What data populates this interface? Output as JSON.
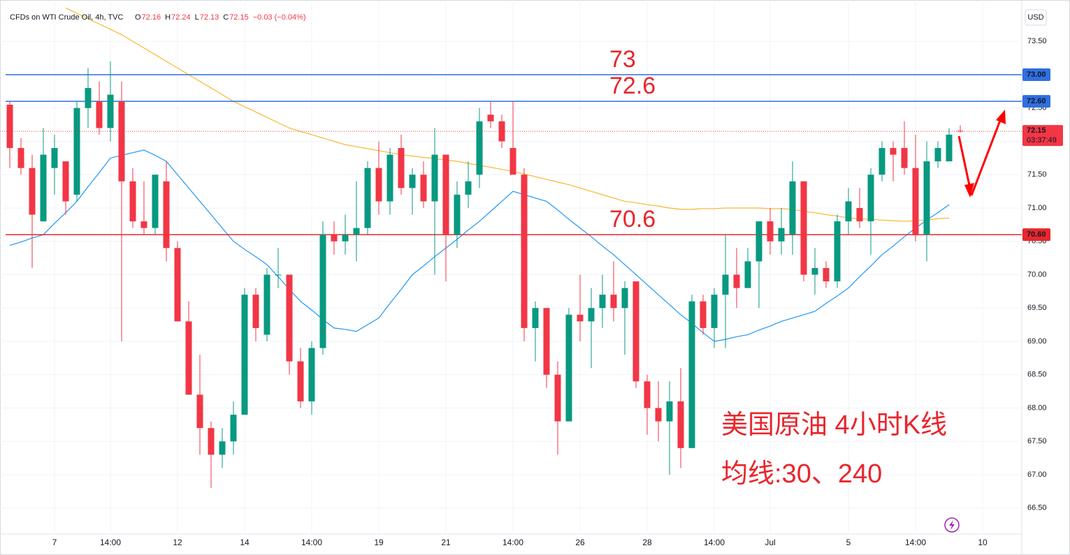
{
  "chart_data": {
    "type": "candlestick",
    "header": {
      "title": "CFDs on WTI Crude Oil, 4h, TVC",
      "open_label": "O",
      "open": "72.16",
      "high_label": "H",
      "high": "72.24",
      "low_label": "L",
      "low": "72.13",
      "close_label": "C",
      "close": "72.15",
      "change": "−0.03 (−0.04%)"
    },
    "currency": "USD",
    "annotations": [
      "美国原油 4小时K线",
      "均线:30、240"
    ],
    "ylim": [
      66.11,
      74.12
    ],
    "yticks": [
      {
        "value": 66.5,
        "label": "66.50"
      },
      {
        "value": 67,
        "label": "67.00"
      },
      {
        "value": 67.5,
        "label": "67.50"
      },
      {
        "value": 68,
        "label": "68.00"
      },
      {
        "value": 68.5,
        "label": "68.50"
      },
      {
        "value": 69,
        "label": "69.00"
      },
      {
        "value": 69.5,
        "label": "69.50"
      },
      {
        "value": 70,
        "label": "70.00"
      },
      {
        "value": 70.5,
        "label": "70.50"
      },
      {
        "value": 71,
        "label": "71.00"
      },
      {
        "value": 71.5,
        "label": "71.50"
      },
      {
        "value": 72,
        "label": "72.00"
      },
      {
        "value": 72.5,
        "label": "72.50"
      },
      {
        "value": 73,
        "label": "73.00"
      },
      {
        "value": 73.5,
        "label": "73.50"
      }
    ],
    "grid": true,
    "up_color": "#089981",
    "down_color": "#f23645",
    "categories": [
      null,
      null,
      null,
      null,
      "7",
      null,
      null,
      null,
      null,
      "14:00",
      null,
      null,
      null,
      null,
      null,
      "12",
      null,
      null,
      null,
      null,
      null,
      "14",
      null,
      null,
      null,
      null,
      null,
      "14:00",
      null,
      null,
      null,
      null,
      null,
      "19",
      null,
      null,
      null,
      null,
      null,
      "21",
      null,
      null,
      null,
      null,
      null,
      "14:00",
      null,
      null,
      null,
      null,
      null,
      "26",
      null,
      null,
      null,
      null,
      null,
      "28",
      null,
      null,
      null,
      null,
      null,
      "14:00",
      null,
      null,
      null,
      null,
      "Jul",
      null,
      null,
      null,
      null,
      null,
      null,
      "5",
      null,
      null,
      null,
      null,
      null,
      "14:00",
      null,
      null,
      null,
      null,
      null,
      "10",
      null,
      null
    ],
    "open": [
      72.55,
      71.9,
      71.6,
      70.8,
      71.6,
      71.7,
      71.2,
      72.5,
      72.6,
      72.2,
      72.6,
      71.4,
      70.8,
      70.7,
      71.4,
      70.4,
      69.3,
      68.2,
      67.7,
      67.3,
      67.5,
      67.9,
      69.7,
      69.1,
      70.0,
      70.0,
      68.7,
      68.1,
      68.9,
      70.6,
      70.5,
      70.6,
      70.7,
      71.6,
      71.1,
      71.9,
      71.3,
      71.5,
      71.1,
      71.8,
      70.6,
      71.2,
      71.5,
      72.4,
      72.3,
      71.9,
      71.5,
      69.2,
      69.5,
      68.5,
      67.8,
      69.4,
      69.3,
      69.5,
      69.7,
      69.5,
      69.9,
      68.4,
      68.0,
      67.8,
      68.1,
      67.4,
      69.6,
      69.2,
      69.7,
      70.0,
      69.8,
      70.2,
      70.8,
      70.5,
      70.6,
      71.4,
      70.0,
      70.1,
      69.9,
      70.8,
      71.0,
      70.8,
      71.5,
      71.9,
      71.9,
      71.6,
      70.6,
      71.7,
      71.7,
      72.16,
      null,
      null,
      null,
      null
    ],
    "high": [
      72.6,
      72.05,
      71.8,
      72.2,
      72.1,
      71.7,
      72.6,
      73.1,
      72.9,
      73.2,
      72.9,
      71.6,
      71.4,
      71.5,
      71.7,
      70.5,
      69.6,
      68.8,
      67.8,
      67.7,
      68.1,
      69.8,
      69.8,
      70.1,
      70.4,
      70.0,
      68.9,
      69.0,
      70.8,
      70.8,
      70.9,
      71.4,
      71.7,
      72.0,
      71.9,
      72.1,
      71.6,
      71.7,
      72.2,
      71.8,
      71.4,
      71.7,
      72.5,
      72.6,
      72.4,
      72.6,
      71.6,
      69.6,
      69.5,
      68.7,
      69.5,
      70.0,
      69.8,
      70.0,
      70.2,
      69.9,
      69.9,
      68.5,
      68.4,
      68.4,
      68.6,
      69.7,
      69.7,
      69.8,
      70.6,
      70.4,
      70.4,
      70.8,
      71.0,
      71.0,
      71.7,
      71.4,
      70.4,
      70.2,
      70.9,
      71.3,
      71.3,
      71.6,
      72.0,
      72.0,
      72.3,
      72.1,
      72.0,
      72.0,
      72.2,
      72.24,
      null,
      null,
      null,
      null
    ],
    "low": [
      71.6,
      71.5,
      70.1,
      70.8,
      71.2,
      70.9,
      71.1,
      72.2,
      72.1,
      72.0,
      69.0,
      70.7,
      70.6,
      70.6,
      70.2,
      69.3,
      68.2,
      67.3,
      66.8,
      67.1,
      67.3,
      67.9,
      69.0,
      69.0,
      69.8,
      68.5,
      68.0,
      67.9,
      68.8,
      70.3,
      70.3,
      70.2,
      70.6,
      70.9,
      70.9,
      71.2,
      70.9,
      71.0,
      70.0,
      69.9,
      70.4,
      71.0,
      71.3,
      72.2,
      71.9,
      71.5,
      69.0,
      68.7,
      68.3,
      67.3,
      67.8,
      69.0,
      68.6,
      69.2,
      69.3,
      68.8,
      68.3,
      67.6,
      67.5,
      67.0,
      67.1,
      67.4,
      69.1,
      68.9,
      68.9,
      69.5,
      69.8,
      69.5,
      70.3,
      70.3,
      70.3,
      69.9,
      69.7,
      69.8,
      69.8,
      70.6,
      70.7,
      70.3,
      71.4,
      71.4,
      71.5,
      70.5,
      70.2,
      71.6,
      71.7,
      72.13,
      null,
      null,
      null,
      null
    ],
    "close": [
      71.9,
      71.6,
      70.9,
      71.8,
      71.9,
      71.1,
      72.5,
      72.8,
      72.2,
      72.7,
      71.4,
      70.8,
      70.7,
      71.5,
      70.4,
      69.3,
      68.2,
      67.7,
      67.3,
      67.5,
      67.9,
      69.7,
      69.2,
      70.0,
      70.0,
      68.7,
      68.1,
      68.9,
      70.6,
      70.5,
      70.6,
      70.7,
      71.6,
      71.1,
      71.8,
      71.3,
      71.5,
      71.1,
      71.8,
      70.6,
      71.2,
      71.4,
      72.3,
      72.3,
      72.0,
      71.5,
      69.2,
      69.5,
      68.5,
      67.8,
      69.4,
      69.3,
      69.5,
      69.7,
      69.5,
      69.8,
      68.4,
      68.0,
      67.8,
      68.1,
      67.4,
      69.6,
      69.2,
      69.7,
      70.0,
      69.8,
      70.2,
      70.8,
      70.5,
      70.7,
      71.4,
      70.0,
      70.1,
      69.9,
      70.8,
      71.1,
      70.8,
      71.5,
      71.9,
      71.8,
      71.6,
      70.6,
      71.7,
      71.9,
      72.1,
      72.15,
      null,
      null,
      null,
      null
    ],
    "series": [
      {
        "name": "MA30",
        "color": "#2196f3",
        "values": [
          70.44,
          70.49,
          70.55,
          70.6,
          70.77,
          70.93,
          71.1,
          71.32,
          71.53,
          71.75,
          71.79,
          71.83,
          71.87,
          71.79,
          71.7,
          71.5,
          71.3,
          71.1,
          70.9,
          70.7,
          70.5,
          70.38,
          70.27,
          70.15,
          69.97,
          69.78,
          69.6,
          69.47,
          69.33,
          69.2,
          69.18,
          69.15,
          69.25,
          69.35,
          69.57,
          69.78,
          70.0,
          70.13,
          70.27,
          70.4,
          70.53,
          70.67,
          70.8,
          70.95,
          71.1,
          71.25,
          71.2,
          71.15,
          71.1,
          70.97,
          70.83,
          70.7,
          70.57,
          70.43,
          70.3,
          70.15,
          70.0,
          69.85,
          69.7,
          69.55,
          69.4,
          69.27,
          69.13,
          69.0,
          69.03,
          69.07,
          69.1,
          69.17,
          69.23,
          69.3,
          69.35,
          69.4,
          69.45,
          69.57,
          69.68,
          69.8,
          69.97,
          70.13,
          70.3,
          70.43,
          70.57,
          70.7,
          70.82,
          70.93,
          71.05,
          null,
          null,
          null,
          null,
          null
        ]
      },
      {
        "name": "MA240",
        "color": "#f7b733",
        "values": [
          null,
          null,
          null,
          null,
          null,
          74.0,
          73.92,
          73.84,
          73.76,
          73.68,
          73.6,
          73.5,
          73.4,
          73.3,
          73.2,
          73.1,
          73.0,
          72.9,
          72.8,
          72.7,
          72.6,
          72.52,
          72.44,
          72.36,
          72.28,
          72.2,
          72.15,
          72.1,
          72.05,
          72.0,
          71.95,
          71.92,
          71.89,
          71.86,
          71.83,
          71.8,
          71.78,
          71.76,
          71.74,
          71.72,
          71.7,
          71.67,
          71.64,
          71.61,
          71.58,
          71.55,
          71.51,
          71.47,
          71.43,
          71.39,
          71.35,
          71.3,
          71.25,
          71.2,
          71.15,
          71.1,
          71.08,
          71.05,
          71.03,
          71.0,
          70.98,
          70.98,
          70.99,
          70.99,
          71.0,
          71.0,
          71.0,
          71.0,
          70.99,
          70.99,
          70.98,
          70.95,
          70.93,
          70.9,
          70.88,
          70.85,
          70.84,
          70.83,
          70.82,
          70.81,
          70.8,
          70.81,
          70.82,
          70.84,
          70.85,
          null,
          null,
          null,
          null,
          null
        ]
      }
    ],
    "levels": [
      {
        "value": 73,
        "label": "73.00",
        "annotation": "73",
        "color": "#2f6fe0"
      },
      {
        "value": 72.6,
        "label": "72.60",
        "annotation": "72.6",
        "color": "#2f6fe0"
      },
      {
        "value": 70.6,
        "label": "70.60",
        "annotation": "70.6",
        "color": "#e8262d"
      }
    ],
    "last_price": {
      "value": 72.15,
      "label": "72.15",
      "countdown": "03:37:49",
      "color": "#f23645"
    }
  }
}
